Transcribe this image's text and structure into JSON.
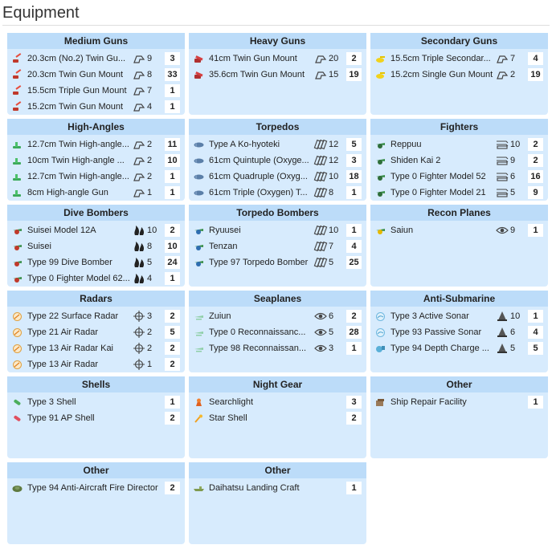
{
  "page": {
    "title": "Equipment"
  },
  "panels": [
    {
      "title": "Medium Guns",
      "items": [
        {
          "name": "20.3cm (No.2) Twin Gu...",
          "icon": "red-gun-icon",
          "stat_icon": "firepower-icon",
          "stat": "9",
          "count": "3"
        },
        {
          "name": "20.3cm Twin Gun Mount",
          "icon": "red-gun-icon",
          "stat_icon": "firepower-icon",
          "stat": "8",
          "count": "33"
        },
        {
          "name": "15.5cm Triple Gun Mount",
          "icon": "red-gun-icon",
          "stat_icon": "firepower-icon",
          "stat": "7",
          "count": "1"
        },
        {
          "name": "15.2cm Twin Gun Mount",
          "icon": "red-gun-icon",
          "stat_icon": "firepower-icon",
          "stat": "4",
          "count": "1"
        }
      ]
    },
    {
      "title": "Heavy Guns",
      "items": [
        {
          "name": "41cm Twin Gun Mount",
          "icon": "red-heavy-gun-icon",
          "stat_icon": "firepower-icon",
          "stat": "20",
          "count": "2"
        },
        {
          "name": "35.6cm Twin Gun Mount",
          "icon": "red-heavy-gun-icon",
          "stat_icon": "firepower-icon",
          "stat": "15",
          "count": "19"
        }
      ]
    },
    {
      "title": "Secondary Guns",
      "items": [
        {
          "name": "15.5cm Triple Secondar...",
          "icon": "yellow-gun-icon",
          "stat_icon": "firepower-icon",
          "stat": "7",
          "count": "4"
        },
        {
          "name": "15.2cm Single Gun Mount",
          "icon": "yellow-gun-icon",
          "stat_icon": "firepower-icon",
          "stat": "2",
          "count": "19"
        }
      ]
    },
    {
      "title": "High-Angles",
      "items": [
        {
          "name": "12.7cm Twin High-angle...",
          "icon": "green-aa-gun-icon",
          "stat_icon": "firepower-icon",
          "stat": "2",
          "count": "11"
        },
        {
          "name": "10cm Twin High-angle ...",
          "icon": "green-aa-gun-icon",
          "stat_icon": "firepower-icon",
          "stat": "2",
          "count": "10"
        },
        {
          "name": "12.7cm Twin High-angle...",
          "icon": "green-aa-gun-icon",
          "stat_icon": "firepower-icon",
          "stat": "2",
          "count": "1"
        },
        {
          "name": "8cm High-angle Gun",
          "icon": "green-aa-gun-icon",
          "stat_icon": "firepower-icon",
          "stat": "1",
          "count": "1"
        }
      ]
    },
    {
      "title": "Torpedos",
      "items": [
        {
          "name": "Type A Ko-hyoteki",
          "icon": "torpedo-icon",
          "stat_icon": "torpedo-stat-icon",
          "stat": "12",
          "count": "5"
        },
        {
          "name": "61cm Quintuple (Oxyge...",
          "icon": "torpedo-icon",
          "stat_icon": "torpedo-stat-icon",
          "stat": "12",
          "count": "3"
        },
        {
          "name": "61cm Quadruple (Oxyg...",
          "icon": "torpedo-icon",
          "stat_icon": "torpedo-stat-icon",
          "stat": "10",
          "count": "18"
        },
        {
          "name": "61cm Triple (Oxygen) T...",
          "icon": "torpedo-icon",
          "stat_icon": "torpedo-stat-icon",
          "stat": "8",
          "count": "1"
        }
      ]
    },
    {
      "title": "Fighters",
      "items": [
        {
          "name": "Reppuu",
          "icon": "fighter-plane-icon",
          "stat_icon": "anti-air-icon",
          "stat": "10",
          "count": "2"
        },
        {
          "name": "Shiden Kai 2",
          "icon": "fighter-plane-icon",
          "stat_icon": "anti-air-icon",
          "stat": "9",
          "count": "2"
        },
        {
          "name": "Type 0 Fighter Model 52",
          "icon": "fighter-plane-icon",
          "stat_icon": "anti-air-icon",
          "stat": "6",
          "count": "16"
        },
        {
          "name": "Type 0 Fighter Model 21",
          "icon": "fighter-plane-icon",
          "stat_icon": "anti-air-icon",
          "stat": "5",
          "count": "9"
        }
      ]
    },
    {
      "title": "Dive Bombers",
      "items": [
        {
          "name": "Suisei Model 12A",
          "icon": "dive-bomber-icon",
          "stat_icon": "bombing-icon",
          "stat": "10",
          "count": "2"
        },
        {
          "name": "Suisei",
          "icon": "dive-bomber-icon",
          "stat_icon": "bombing-icon",
          "stat": "8",
          "count": "10"
        },
        {
          "name": "Type 99 Dive Bomber",
          "icon": "dive-bomber-icon",
          "stat_icon": "bombing-icon",
          "stat": "5",
          "count": "24"
        },
        {
          "name": "Type 0 Fighter Model 62...",
          "icon": "dive-bomber-icon",
          "stat_icon": "bombing-icon",
          "stat": "4",
          "count": "1"
        }
      ]
    },
    {
      "title": "Torpedo Bombers",
      "items": [
        {
          "name": "Ryuusei",
          "icon": "torpedo-bomber-icon",
          "stat_icon": "torpedo-stat-icon",
          "stat": "10",
          "count": "1"
        },
        {
          "name": "Tenzan",
          "icon": "torpedo-bomber-icon",
          "stat_icon": "torpedo-stat-icon",
          "stat": "7",
          "count": "4"
        },
        {
          "name": "Type 97 Torpedo Bomber",
          "icon": "torpedo-bomber-icon",
          "stat_icon": "torpedo-stat-icon",
          "stat": "5",
          "count": "25"
        }
      ]
    },
    {
      "title": "Recon Planes",
      "items": [
        {
          "name": "Saiun",
          "icon": "recon-plane-icon",
          "stat_icon": "eye-icon",
          "stat": "9",
          "count": "1"
        }
      ]
    },
    {
      "title": "Radars",
      "items": [
        {
          "name": "Type 22 Surface Radar",
          "icon": "radar-icon",
          "stat_icon": "accuracy-icon",
          "stat": "3",
          "count": "2"
        },
        {
          "name": "Type 21 Air Radar",
          "icon": "radar-icon",
          "stat_icon": "accuracy-icon",
          "stat": "2",
          "count": "5"
        },
        {
          "name": "Type 13 Air Radar Kai",
          "icon": "radar-icon",
          "stat_icon": "accuracy-icon",
          "stat": "2",
          "count": "2"
        },
        {
          "name": "Type 13 Air Radar",
          "icon": "radar-icon",
          "stat_icon": "accuracy-icon",
          "stat": "1",
          "count": "2"
        }
      ]
    },
    {
      "title": "Seaplanes",
      "items": [
        {
          "name": "Zuiun",
          "icon": "seaplane-icon",
          "stat_icon": "eye-icon",
          "stat": "6",
          "count": "2"
        },
        {
          "name": "Type 0 Reconnaissanc...",
          "icon": "seaplane-icon",
          "stat_icon": "eye-icon",
          "stat": "5",
          "count": "28"
        },
        {
          "name": "Type 98 Reconnaissan...",
          "icon": "seaplane-icon",
          "stat_icon": "eye-icon",
          "stat": "3",
          "count": "1"
        }
      ]
    },
    {
      "title": "Anti-Submarine",
      "items": [
        {
          "name": "Type 3 Active Sonar",
          "icon": "sonar-icon",
          "stat_icon": "asw-icon",
          "stat": "10",
          "count": "1"
        },
        {
          "name": "Type 93 Passive Sonar",
          "icon": "sonar-icon",
          "stat_icon": "asw-icon",
          "stat": "6",
          "count": "4"
        },
        {
          "name": "Type 94 Depth Charge ...",
          "icon": "depth-charge-icon",
          "stat_icon": "asw-icon",
          "stat": "5",
          "count": "5"
        }
      ]
    },
    {
      "title": "Shells",
      "items": [
        {
          "name": "Type 3 Shell",
          "icon": "green-shell-icon",
          "stat_icon": "",
          "stat": "",
          "count": "1"
        },
        {
          "name": "Type 91 AP Shell",
          "icon": "red-shell-icon",
          "stat_icon": "",
          "stat": "",
          "count": "2"
        }
      ]
    },
    {
      "title": "Night Gear",
      "items": [
        {
          "name": "Searchlight",
          "icon": "searchlight-icon",
          "stat_icon": "",
          "stat": "",
          "count": "3"
        },
        {
          "name": "Star Shell",
          "icon": "star-shell-icon",
          "stat_icon": "",
          "stat": "",
          "count": "2"
        }
      ]
    },
    {
      "title": "Other",
      "items": [
        {
          "name": "Ship Repair Facility",
          "icon": "repair-facility-icon",
          "stat_icon": "",
          "stat": "",
          "count": "1"
        }
      ]
    },
    {
      "title": "Other",
      "items": [
        {
          "name": "Type 94 Anti-Aircraft Fire Director",
          "icon": "fire-director-icon",
          "stat_icon": "",
          "stat": "",
          "count": "2"
        }
      ]
    },
    {
      "title": "Other",
      "items": [
        {
          "name": "Daihatsu Landing Craft",
          "icon": "landing-craft-icon",
          "stat_icon": "",
          "stat": "",
          "count": "1"
        }
      ]
    }
  ]
}
